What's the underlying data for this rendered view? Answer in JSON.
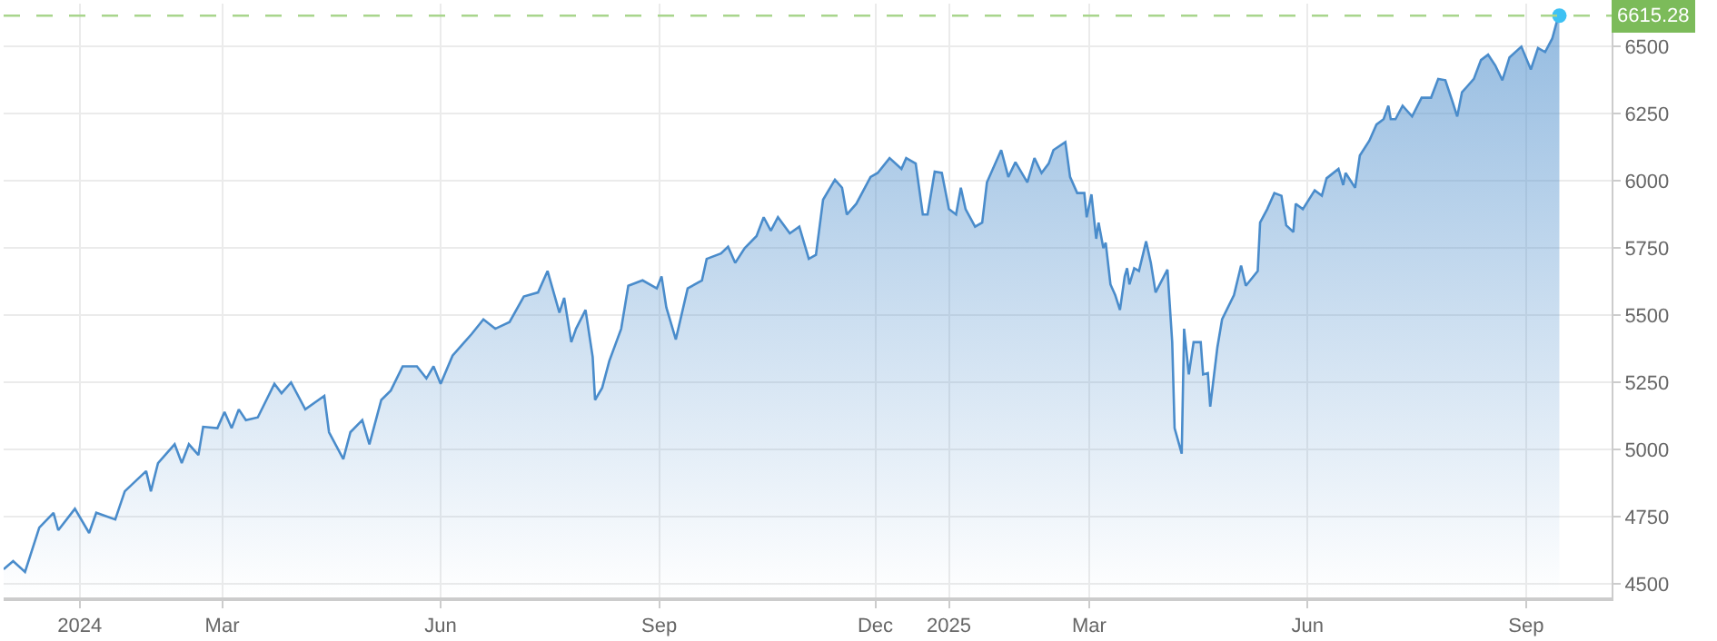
{
  "chart_data": {
    "type": "area",
    "x": [
      "2023-11-30",
      "2023-12-04",
      "2023-12-09",
      "2023-12-15",
      "2023-12-21",
      "2023-12-23",
      "2023-12-30",
      "2024-01-05",
      "2024-01-08",
      "2024-01-16",
      "2024-01-20",
      "2024-01-29",
      "2024-01-31",
      "2024-02-03",
      "2024-02-10",
      "2024-02-13",
      "2024-02-16",
      "2024-02-20",
      "2024-02-22",
      "2024-02-28",
      "2024-03-02",
      "2024-03-05",
      "2024-03-08",
      "2024-03-11",
      "2024-03-16",
      "2024-03-23",
      "2024-03-26",
      "2024-03-30",
      "2024-04-05",
      "2024-04-13",
      "2024-04-15",
      "2024-04-21",
      "2024-04-24",
      "2024-04-29",
      "2024-05-02",
      "2024-05-07",
      "2024-05-11",
      "2024-05-16",
      "2024-05-22",
      "2024-05-26",
      "2024-05-29",
      "2024-06-01",
      "2024-06-06",
      "2024-06-14",
      "2024-06-19",
      "2024-06-24",
      "2024-06-30",
      "2024-07-06",
      "2024-07-12",
      "2024-07-16",
      "2024-07-21",
      "2024-07-23",
      "2024-07-26",
      "2024-07-28",
      "2024-08-01",
      "2024-08-04",
      "2024-08-05",
      "2024-08-08",
      "2024-08-11",
      "2024-08-16",
      "2024-08-19",
      "2024-08-25",
      "2024-08-31",
      "2024-09-02",
      "2024-09-04",
      "2024-09-08",
      "2024-09-13",
      "2024-09-19",
      "2024-09-21",
      "2024-09-27",
      "2024-09-30",
      "2024-10-03",
      "2024-10-07",
      "2024-10-12",
      "2024-10-15",
      "2024-10-18",
      "2024-10-21",
      "2024-10-26",
      "2024-10-30",
      "2024-11-03",
      "2024-11-06",
      "2024-11-09",
      "2024-11-14",
      "2024-11-17",
      "2024-11-19",
      "2024-11-23",
      "2024-11-29",
      "2024-12-02",
      "2024-12-07",
      "2024-12-12",
      "2024-12-14",
      "2024-12-18",
      "2024-12-21",
      "2024-12-23",
      "2024-12-26",
      "2024-12-29",
      "2025-01-01",
      "2025-01-04",
      "2025-01-06",
      "2025-01-08",
      "2025-01-12",
      "2025-01-15",
      "2025-01-17",
      "2025-01-23",
      "2025-01-26",
      "2025-01-29",
      "2025-02-03",
      "2025-02-06",
      "2025-02-09",
      "2025-02-12",
      "2025-02-14",
      "2025-02-19",
      "2025-02-21",
      "2025-02-24",
      "2025-02-27",
      "2025-02-28",
      "2025-03-02",
      "2025-03-04",
      "2025-03-05",
      "2025-03-07",
      "2025-03-08",
      "2025-03-10",
      "2025-03-12",
      "2025-03-14",
      "2025-03-16",
      "2025-03-17",
      "2025-03-18",
      "2025-03-20",
      "2025-03-22",
      "2025-03-25",
      "2025-03-27",
      "2025-03-29",
      "2025-04-03",
      "2025-04-05",
      "2025-04-06",
      "2025-04-09",
      "2025-04-10",
      "2025-04-12",
      "2025-04-14",
      "2025-04-17",
      "2025-04-18",
      "2025-04-20",
      "2025-04-21",
      "2025-04-24",
      "2025-04-26",
      "2025-05-01",
      "2025-05-04",
      "2025-05-06",
      "2025-05-11",
      "2025-05-12",
      "2025-05-15",
      "2025-05-18",
      "2025-05-21",
      "2025-05-23",
      "2025-05-26",
      "2025-05-27",
      "2025-05-30",
      "2025-06-04",
      "2025-06-07",
      "2025-06-09",
      "2025-06-14",
      "2025-06-16",
      "2025-06-17",
      "2025-06-21",
      "2025-06-23",
      "2025-06-27",
      "2025-06-30",
      "2025-07-03",
      "2025-07-05",
      "2025-07-06",
      "2025-07-08",
      "2025-07-11",
      "2025-07-15",
      "2025-07-19",
      "2025-07-23",
      "2025-07-26",
      "2025-07-29",
      "2025-08-01",
      "2025-08-03",
      "2025-08-05",
      "2025-08-07",
      "2025-08-10",
      "2025-08-13",
      "2025-08-16",
      "2025-08-19",
      "2025-08-22",
      "2025-08-25",
      "2025-08-30",
      "2025-09-03",
      "2025-09-06",
      "2025-09-09",
      "2025-09-12",
      "2025-09-14",
      "2025-09-15"
    ],
    "series": [
      {
        "color": "#4a8ccb",
        "values": [
          4555,
          4585,
          4545,
          4710,
          4765,
          4700,
          4780,
          4690,
          4765,
          4740,
          4845,
          4920,
          4845,
          4950,
          5020,
          4950,
          5020,
          4980,
          5085,
          5080,
          5140,
          5080,
          5150,
          5110,
          5120,
          5245,
          5210,
          5250,
          5150,
          5200,
          5065,
          4965,
          5065,
          5110,
          5020,
          5185,
          5220,
          5310,
          5310,
          5265,
          5310,
          5245,
          5350,
          5430,
          5485,
          5450,
          5475,
          5570,
          5585,
          5665,
          5510,
          5565,
          5400,
          5450,
          5520,
          5345,
          5185,
          5230,
          5330,
          5450,
          5610,
          5630,
          5600,
          5645,
          5530,
          5410,
          5600,
          5630,
          5710,
          5730,
          5755,
          5695,
          5750,
          5795,
          5865,
          5815,
          5865,
          5805,
          5830,
          5710,
          5725,
          5930,
          6005,
          5975,
          5875,
          5915,
          6015,
          6030,
          6085,
          6045,
          6085,
          6065,
          5875,
          5875,
          6035,
          6030,
          5895,
          5875,
          5975,
          5895,
          5830,
          5845,
          5995,
          6115,
          6015,
          6070,
          5995,
          6085,
          6030,
          6065,
          6115,
          6145,
          6015,
          5955,
          5955,
          5865,
          5950,
          5785,
          5845,
          5750,
          5770,
          5615,
          5575,
          5520,
          5645,
          5675,
          5615,
          5675,
          5665,
          5775,
          5695,
          5585,
          5670,
          5400,
          5080,
          4985,
          5450,
          5280,
          5400,
          5400,
          5280,
          5285,
          5160,
          5380,
          5485,
          5575,
          5685,
          5610,
          5665,
          5845,
          5895,
          5955,
          5945,
          5835,
          5810,
          5915,
          5895,
          5965,
          5945,
          6010,
          6045,
          5985,
          6030,
          5975,
          6095,
          6150,
          6210,
          6230,
          6280,
          6230,
          6230,
          6280,
          6240,
          6310,
          6310,
          6380,
          6375,
          6295,
          6240,
          6330,
          6350,
          6380,
          6450,
          6470,
          6430,
          6375,
          6460,
          6500,
          6415,
          6495,
          6480,
          6530,
          6595,
          6615.28
        ]
      },
      {
        "type": "scatter",
        "marker": "circle",
        "color": "#3ec1f3",
        "x": [
          "2025-09-15"
        ],
        "values": [
          6615.28
        ]
      }
    ],
    "xlim": [
      "2023-11-30",
      "2025-10-07"
    ],
    "xticks": [
      {
        "value": "2024-01-01",
        "label": "2024"
      },
      {
        "value": "2024-03-01",
        "label": "Mar"
      },
      {
        "value": "2024-06-01",
        "label": "Jun"
      },
      {
        "value": "2024-09-01",
        "label": "Sep"
      },
      {
        "value": "2024-12-01",
        "label": "Dec"
      },
      {
        "value": "2025-01-01",
        "label": "2025"
      },
      {
        "value": "2025-03-01",
        "label": "Mar"
      },
      {
        "value": "2025-06-01",
        "label": "Jun"
      },
      {
        "value": "2025-09-01",
        "label": "Sep"
      }
    ],
    "ylim": [
      4450,
      6660
    ],
    "yticks": [
      4500,
      4750,
      5000,
      5250,
      5500,
      5750,
      6000,
      6250,
      6500
    ],
    "ref_lines": [
      {
        "axis": "y",
        "value": 6615.28,
        "label": "6615.28",
        "color": "#a8d58c",
        "line_style": "dashed"
      }
    ],
    "grid": true,
    "marker": "none",
    "line_style": "solid"
  }
}
